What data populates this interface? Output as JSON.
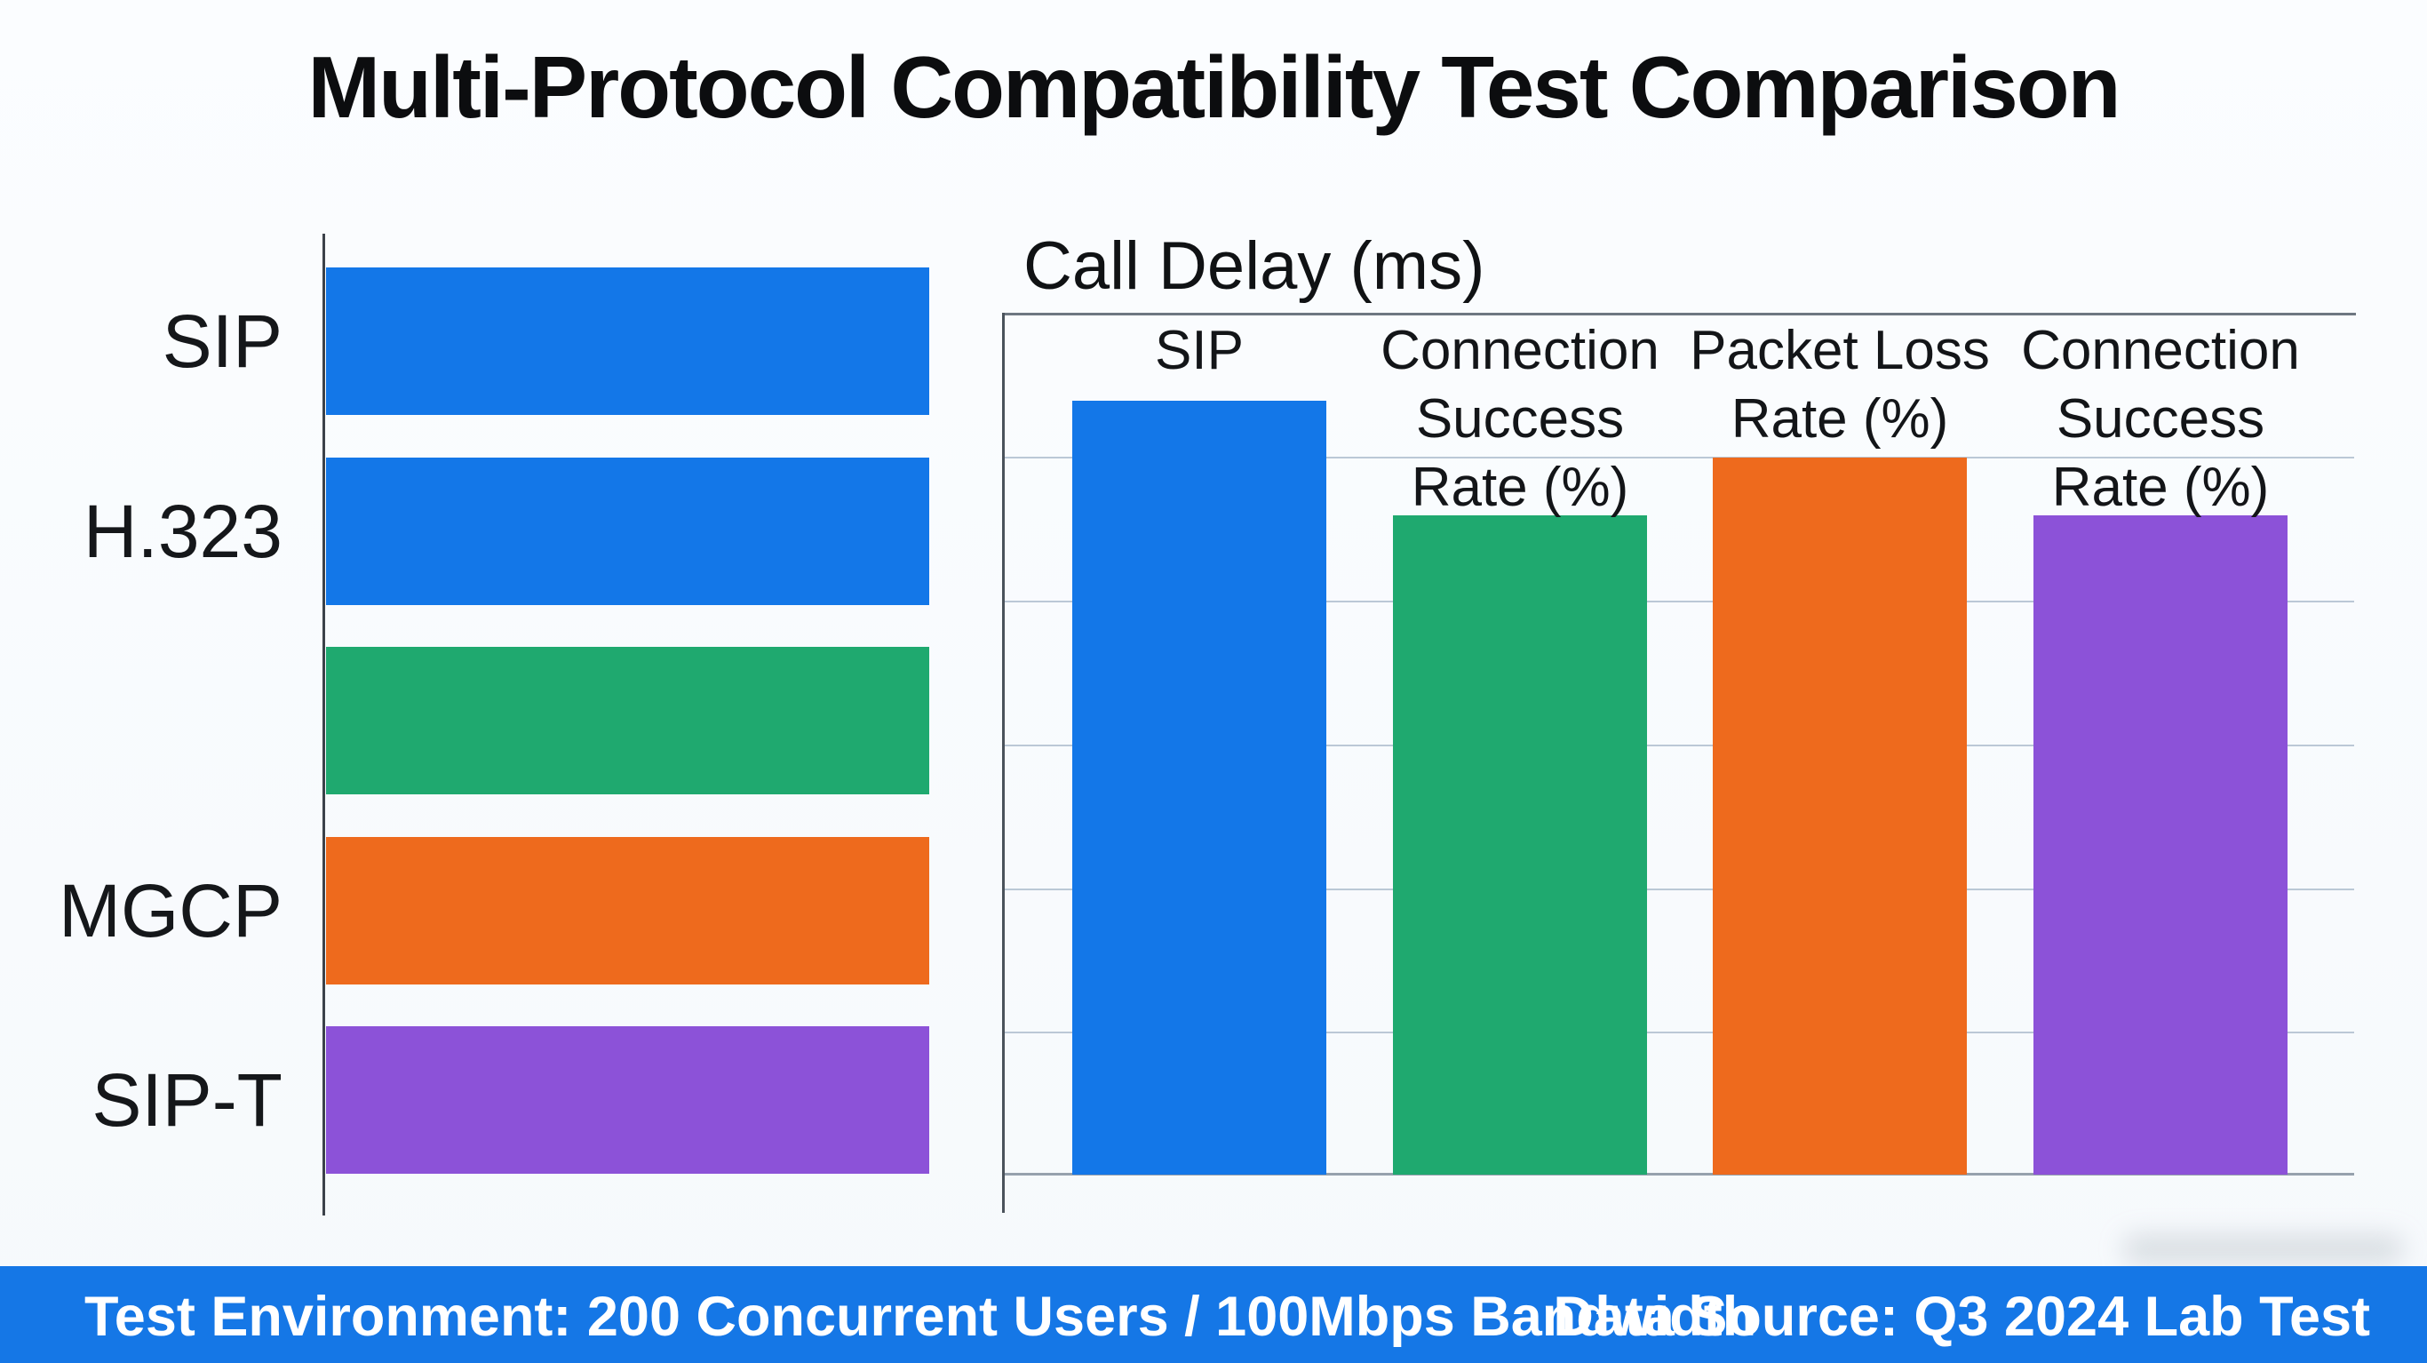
{
  "title": "Multi-Protocol Compatibility Test Comparison",
  "colors": {
    "blue": "#1377e8",
    "green": "#1fa96f",
    "orange": "#ee6a1d",
    "purple": "#8c52d8",
    "footer_bg": "#1577e6",
    "gridline": "#bbc8d6",
    "axis": "#4a525b"
  },
  "left_chart": {
    "row_labels": [
      "SIP",
      "H.323",
      "",
      "MGCP",
      "SIP-T"
    ],
    "row_colors": [
      "blue",
      "blue",
      "green",
      "orange",
      "purple"
    ]
  },
  "right_chart": {
    "title": "Call Delay (ms)",
    "column_labels": [
      "SIP",
      "Connection\nSuccess\nRate (%)",
      "Packet Loss\nRate (%)",
      "Connection\nSuccess\nRate (%)"
    ],
    "column_colors": [
      "blue",
      "green",
      "orange",
      "purple"
    ]
  },
  "footer": {
    "left": "Test Environment: 200 Concurrent Users / 100Mbps Bandwidth",
    "right": "Data Source: Q3 2024 Lab Test"
  },
  "chart_data": [
    {
      "type": "bar",
      "orientation": "horizontal",
      "categories": [
        "SIP",
        "H.323",
        "",
        "MGCP",
        "SIP-T"
      ],
      "values": [
        100,
        100,
        100,
        100,
        100
      ],
      "title": "",
      "xlabel": "",
      "ylabel": "",
      "note": "All five bars are equal full length; no value axis or tick labels are shown. Third bar (green) is unlabeled.",
      "legend": "none",
      "grid": false
    },
    {
      "type": "bar",
      "orientation": "vertical",
      "title": "Call Delay (ms)",
      "categories": [
        "SIP",
        "Connection Success Rate (%)",
        "Packet Loss Rate (%)",
        "Connection Success Rate (%)"
      ],
      "values": [
        54,
        46,
        50,
        46
      ],
      "ylim": [
        0,
        60
      ],
      "gridline_step": 10,
      "note": "No numeric axis tick labels visible; values estimated from gridlines (6 equal intervals). Category labels are printed inside the plot above each bar.",
      "legend": "none",
      "grid": true
    }
  ]
}
